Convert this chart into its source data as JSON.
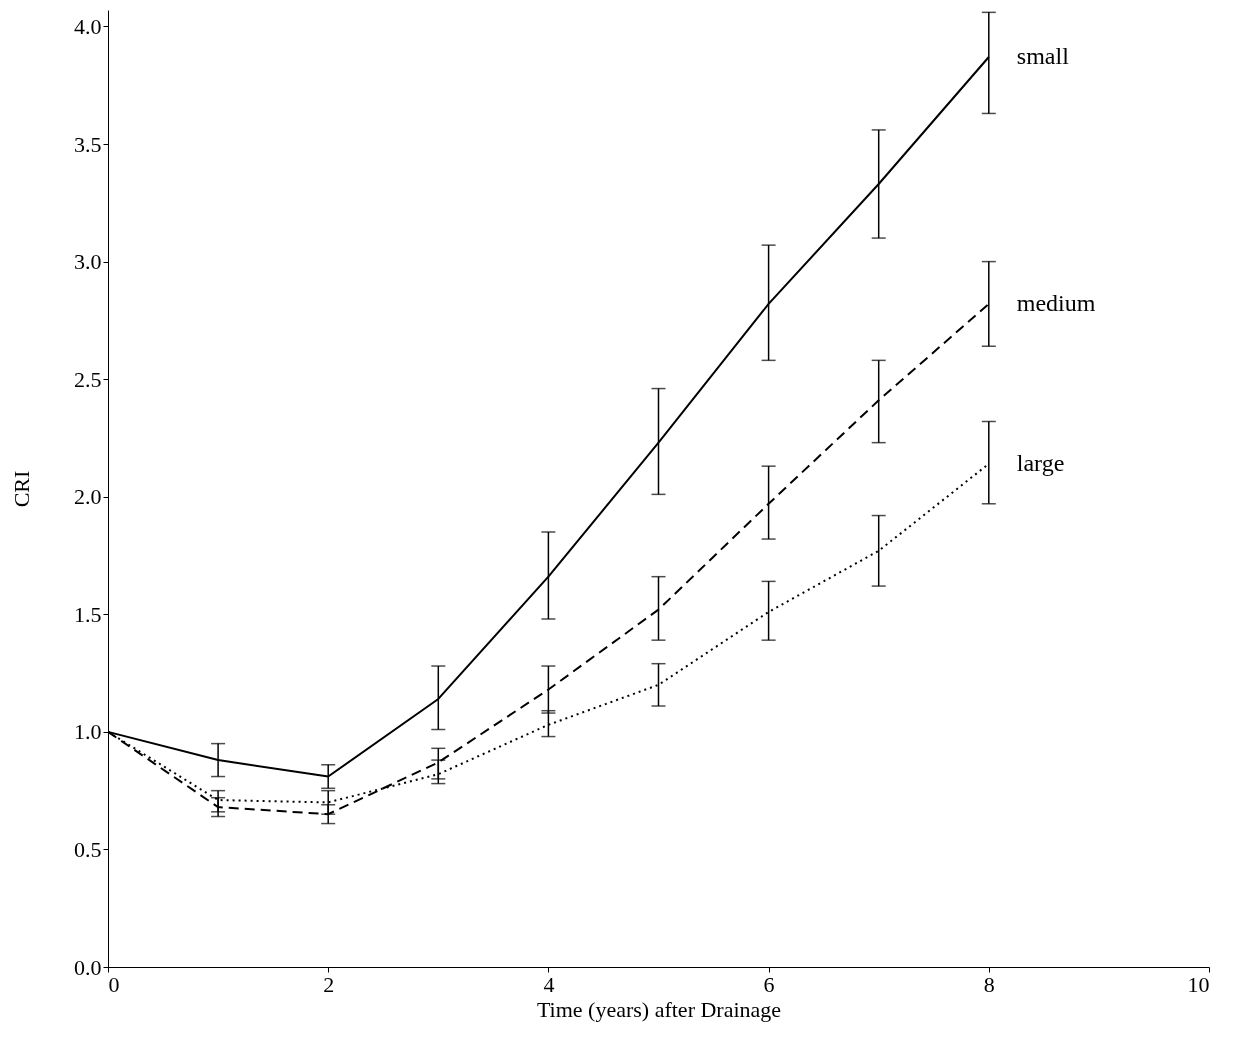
{
  "chart_data": {
    "type": "line",
    "xlabel": "Time (years) after Drainage",
    "ylabel": "CRI",
    "x": [
      0,
      1,
      2,
      3,
      4,
      5,
      6,
      7,
      8
    ],
    "series": [
      {
        "name": "small",
        "color": "#000000",
        "line_style": "solid",
        "values": [
          1.0,
          0.88,
          0.81,
          1.14,
          1.66,
          2.23,
          2.82,
          3.33,
          3.87
        ],
        "errors": [
          null,
          [
            0.81,
            0.95
          ],
          [
            0.76,
            0.86
          ],
          [
            1.01,
            1.28
          ],
          [
            1.48,
            1.85
          ],
          [
            2.01,
            2.46
          ],
          [
            2.58,
            3.07
          ],
          [
            3.1,
            3.56
          ],
          [
            3.63,
            4.06
          ]
        ]
      },
      {
        "name": "medium",
        "color": "#000000",
        "line_style": "dashed",
        "values": [
          1.0,
          0.68,
          0.65,
          0.87,
          1.18,
          1.52,
          1.97,
          2.41,
          2.82
        ],
        "errors": [
          null,
          [
            0.64,
            0.72
          ],
          [
            0.61,
            0.69
          ],
          [
            0.8,
            0.93
          ],
          [
            1.08,
            1.28
          ],
          [
            1.39,
            1.66
          ],
          [
            1.82,
            2.13
          ],
          [
            2.23,
            2.58
          ],
          [
            2.64,
            3.0
          ]
        ]
      },
      {
        "name": "large",
        "color": "#000000",
        "line_style": "dotted",
        "values": [
          1.0,
          0.71,
          0.7,
          0.82,
          1.03,
          1.2,
          1.51,
          1.77,
          2.14
        ],
        "errors": [
          null,
          [
            0.66,
            0.75
          ],
          [
            0.65,
            0.75
          ],
          [
            0.78,
            0.88
          ],
          [
            0.98,
            1.09
          ],
          [
            1.11,
            1.29
          ],
          [
            1.39,
            1.64
          ],
          [
            1.62,
            1.92
          ],
          [
            1.97,
            2.32
          ]
        ]
      }
    ],
    "xlim": [
      0,
      10
    ],
    "xticks": [
      0,
      2,
      4,
      6,
      8,
      10
    ],
    "ylim": [
      0,
      4.07
    ],
    "yticks": [
      {
        "value": 0,
        "label": "0.0"
      },
      {
        "value": 0.5,
        "label": "0.5"
      },
      {
        "value": 1,
        "label": "1.0"
      },
      {
        "value": 1.5,
        "label": "1.5"
      },
      {
        "value": 2,
        "label": "2.0"
      },
      {
        "value": 2.5,
        "label": "2.5"
      },
      {
        "value": 3,
        "label": "3.0"
      },
      {
        "value": 3.5,
        "label": "3.5"
      },
      {
        "value": 4,
        "label": "4.0"
      }
    ],
    "marker": "none",
    "grid": false
  }
}
